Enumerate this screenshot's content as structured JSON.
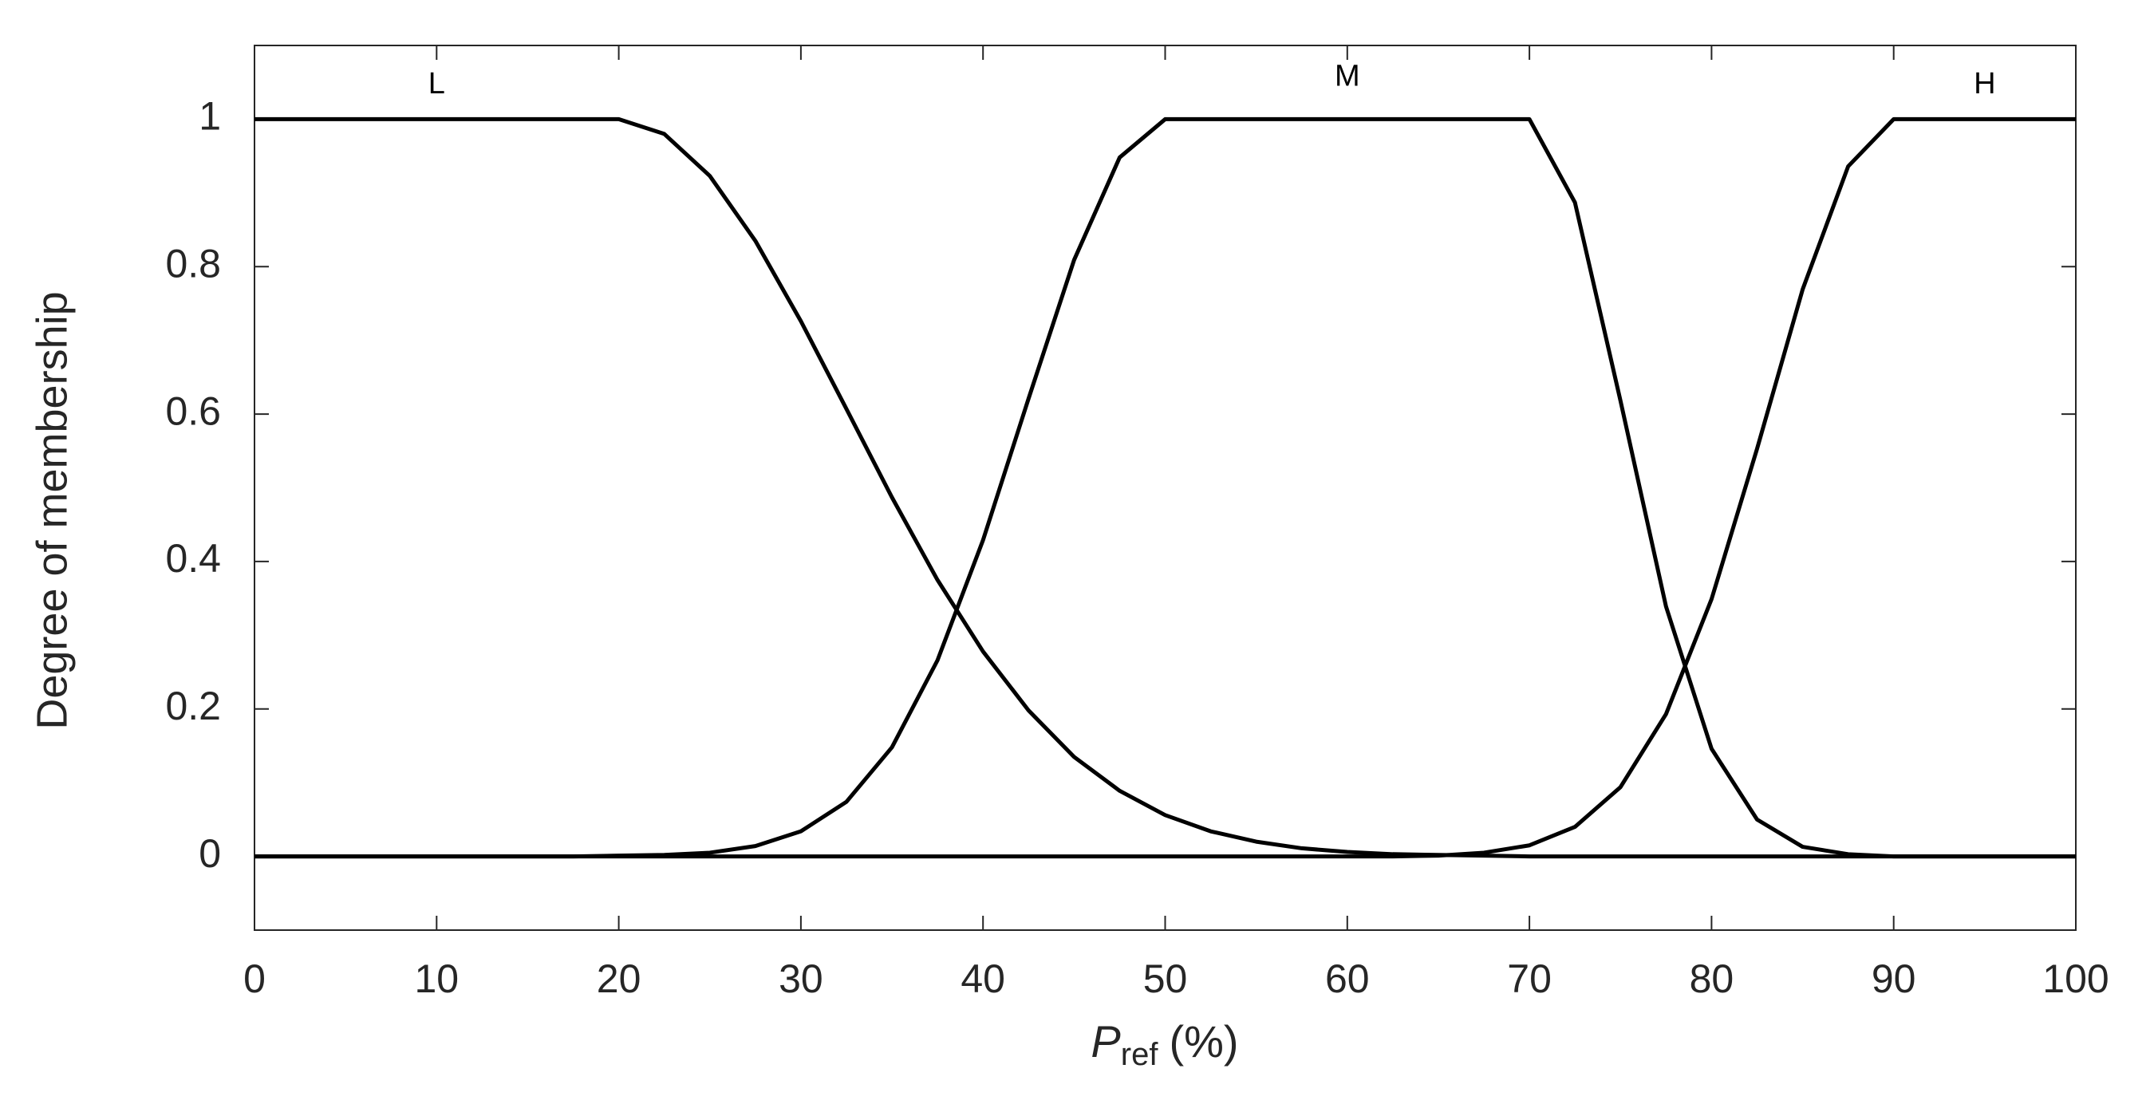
{
  "chart_data": {
    "type": "line",
    "ylabel": "Degree of membership",
    "xlabel": {
      "main": "P",
      "sub": "ref",
      "unit": "(%)"
    },
    "xlim": [
      0,
      100
    ],
    "xticks": [
      0,
      10,
      20,
      30,
      40,
      50,
      60,
      70,
      80,
      90,
      100
    ],
    "ylim": [
      -0.1,
      1.1
    ],
    "yticks": [
      0,
      0.2,
      0.4,
      0.6,
      0.8,
      1
    ],
    "x": [
      0,
      2.5,
      5,
      7.5,
      10,
      12.5,
      15,
      17.5,
      20,
      22.5,
      25,
      27.5,
      30,
      32.5,
      35,
      37.5,
      40,
      42.5,
      45,
      47.5,
      50,
      52.5,
      55,
      57.5,
      60,
      62.5,
      65,
      67.5,
      70,
      72.5,
      75,
      77.5,
      80,
      82.5,
      85,
      87.5,
      90,
      92.5,
      95,
      97.5,
      100
    ],
    "series": [
      {
        "name": "L",
        "color": "#000000",
        "values": [
          1,
          1,
          1,
          1,
          1,
          1,
          1,
          1,
          1,
          0.98,
          0.923,
          0.835,
          0.726,
          0.607,
          0.487,
          0.375,
          0.278,
          0.198,
          0.135,
          0.089,
          0.056,
          0.034,
          0.02,
          0.011,
          0.006,
          0.003,
          0.002,
          0.001,
          0,
          0,
          0,
          0,
          0,
          0,
          0,
          0,
          0,
          0,
          0,
          0,
          0
        ]
      },
      {
        "name": "M",
        "color": "#000000",
        "values": [
          0,
          0,
          0,
          0,
          0,
          0,
          0,
          0,
          0.001,
          0.002,
          0.005,
          0.014,
          0.034,
          0.074,
          0.148,
          0.266,
          0.429,
          0.621,
          0.809,
          0.948,
          1,
          1,
          1,
          1,
          1,
          1,
          1,
          1,
          1,
          0.887,
          0.618,
          0.339,
          0.146,
          0.05,
          0.013,
          0.003,
          0,
          0,
          0,
          0,
          0
        ]
      },
      {
        "name": "H",
        "color": "#000000",
        "values": [
          0,
          0,
          0,
          0,
          0,
          0,
          0,
          0,
          0,
          0,
          0,
          0,
          0,
          0,
          0,
          0,
          0,
          0,
          0,
          0,
          0,
          0,
          0,
          0,
          0,
          0,
          0.001,
          0.005,
          0.015,
          0.04,
          0.094,
          0.193,
          0.349,
          0.553,
          0.769,
          0.936,
          1,
          1,
          1,
          1,
          1
        ]
      }
    ]
  }
}
